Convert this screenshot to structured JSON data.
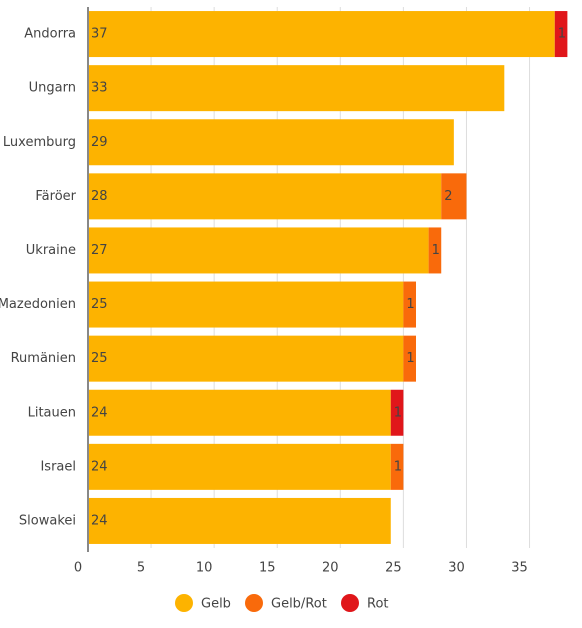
{
  "chart_data": {
    "type": "stacked-bar-horizontal",
    "categories": [
      "Andorra",
      "Ungarn",
      "Luxemburg",
      "Färöer",
      "Ukraine",
      "Mazedonien",
      "Rumänien",
      "Litauen",
      "Israel",
      "Slowakei"
    ],
    "series": [
      {
        "name": "Gelb",
        "color": "#fdb300",
        "values": [
          37,
          33,
          29,
          28,
          27,
          25,
          25,
          24,
          24,
          24
        ]
      },
      {
        "name": "Gelb/Rot",
        "color": "#f96a0b",
        "values": [
          null,
          null,
          null,
          2,
          1,
          1,
          1,
          null,
          1,
          null
        ]
      },
      {
        "name": "Rot",
        "color": "#e0161a",
        "values": [
          1,
          null,
          null,
          null,
          null,
          null,
          null,
          1,
          null,
          null
        ]
      }
    ],
    "xlim": [
      0,
      39
    ],
    "xticks": [
      0,
      5,
      10,
      15,
      20,
      25,
      30,
      35
    ],
    "grid": true,
    "legend": "bottom"
  }
}
